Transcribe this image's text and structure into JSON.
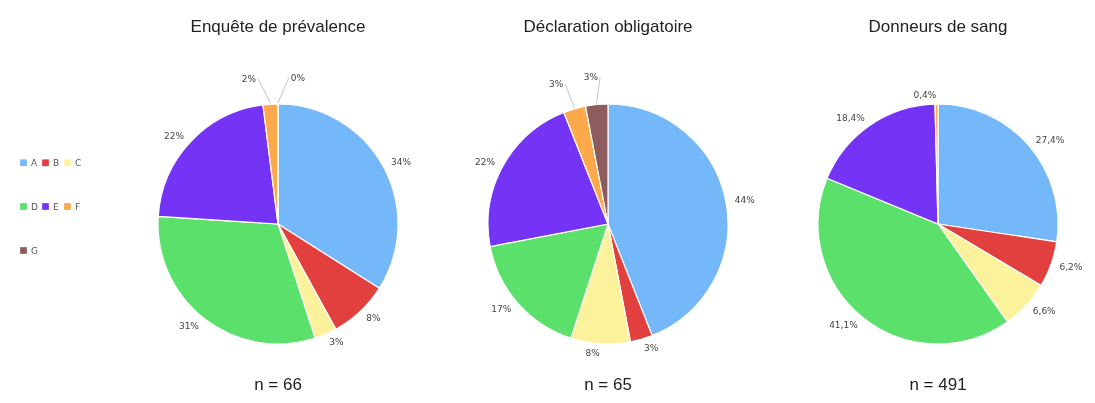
{
  "chart_data": [
    {
      "type": "pie",
      "title": "Enquête de prévalence",
      "categories": [
        "A",
        "B",
        "C",
        "D",
        "E",
        "F",
        "G"
      ],
      "values": [
        34,
        8,
        3,
        31,
        22,
        2,
        0
      ],
      "colors": [
        "#74b8f9",
        "#e23f3f",
        "#fcf29c",
        "#5be06b",
        "#7533f5",
        "#fba94b",
        "#8d5c5c"
      ],
      "value_labels": [
        "34%",
        "8%",
        "3%",
        "31%",
        "22%",
        "2%",
        "0%"
      ],
      "annotations": [
        "n = 66"
      ],
      "legend": "left"
    },
    {
      "type": "pie",
      "title": "Déclaration obligatoire",
      "categories": [
        null,
        null,
        null,
        null,
        null,
        null,
        null
      ],
      "values": [
        44,
        3,
        8,
        17,
        22,
        3,
        3
      ],
      "colors": [
        "#74b8f9",
        "#e23f3f",
        "#fcf29c",
        "#5be06b",
        "#7533f5",
        "#fba94b",
        "#8d5c5c"
      ],
      "value_labels": [
        "44%",
        "3%",
        "8%",
        "17%",
        "22%",
        "3%",
        "3%"
      ],
      "annotations": [
        "n = 65"
      ]
    },
    {
      "type": "pie",
      "title": "Donneurs de sang",
      "categories": [
        null,
        null,
        null,
        null,
        null,
        null
      ],
      "values": [
        27.4,
        6.2,
        6.6,
        41.1,
        18.4,
        0.4
      ],
      "colors": [
        "#74b8f9",
        "#e23f3f",
        "#fcf29c",
        "#5be06b",
        "#7533f5",
        "#fba94b"
      ],
      "value_labels": [
        "27,4%",
        "6,2%",
        "6,6%",
        "41,1%",
        "18,4%",
        "0,4%"
      ],
      "annotations": [
        "n = 491"
      ]
    }
  ]
}
